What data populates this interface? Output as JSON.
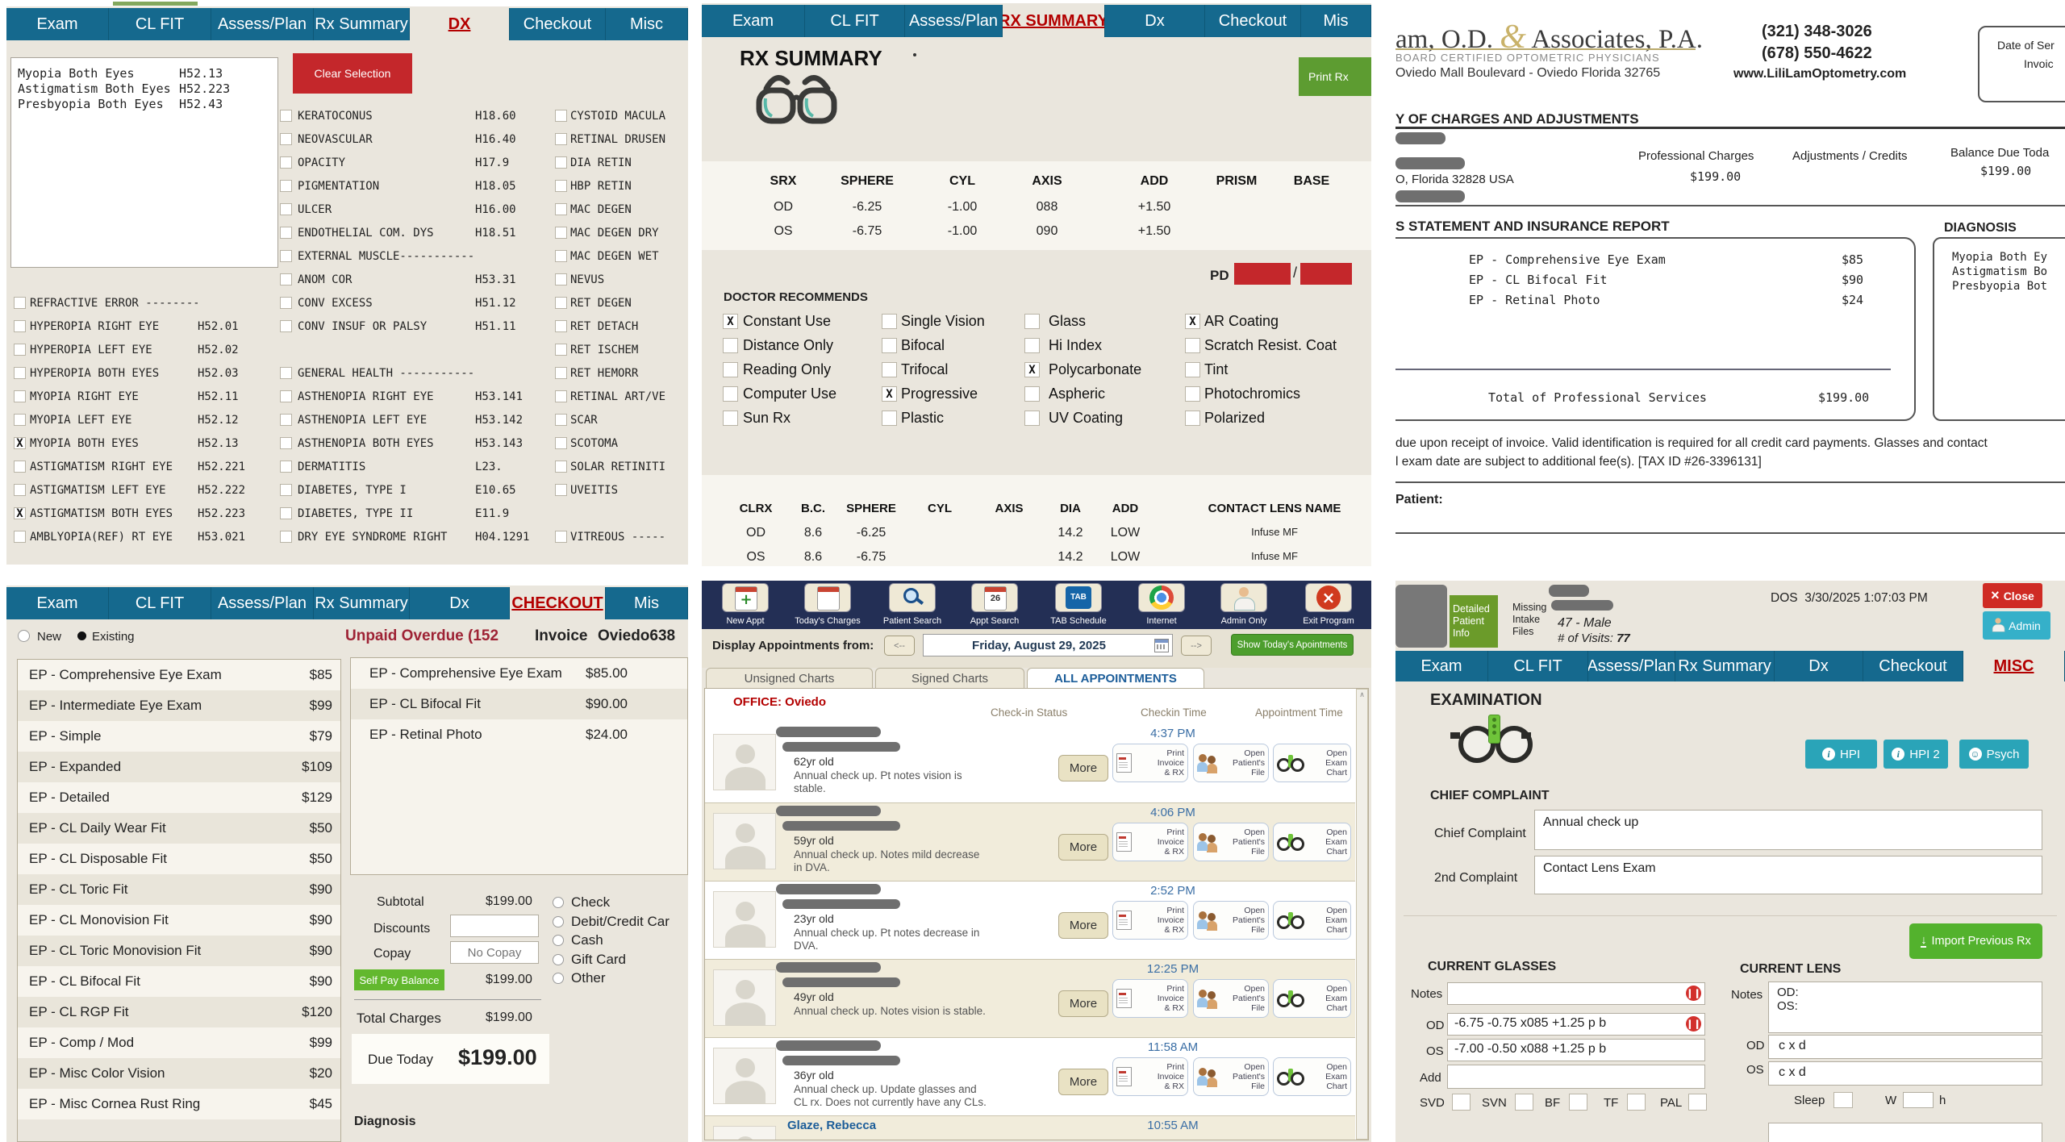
{
  "colors": {
    "tabbar": "#15698e",
    "tab_active_text": "#b30000",
    "clear_red": "#c4272b",
    "print_green": "#5d9c31",
    "selfpay_green": "#62b82e",
    "show_green": "#4d9e2d",
    "import_green": "#53b22d",
    "close_red": "#cf2b24",
    "admin_teal": "#35b0c9",
    "hpi_teal": "#2aa4b8",
    "toolbar_navy": "#232f55",
    "unpaid_red": "#9e2335",
    "office_red": "#b30000",
    "time_blue": "#3a6ea5",
    "panel_bg": "#eae6dd"
  },
  "dx": {
    "tabs": [
      {
        "label": "Exam"
      },
      {
        "label": "CL FIT"
      },
      {
        "label": "Assess/Plan"
      },
      {
        "label": "Rx Summary"
      },
      {
        "label": "DX",
        "active": true
      },
      {
        "label": "Checkout"
      },
      {
        "label": "Misc"
      }
    ],
    "selected": [
      {
        "name": "Myopia Both Eyes",
        "code": "H52.13"
      },
      {
        "name": "Astigmatism Both Eyes",
        "code": "H52.223"
      },
      {
        "name": "Presbyopia Both Eyes",
        "code": "H52.43"
      }
    ],
    "clear_button": "Clear Selection",
    "rows": [
      [
        null,
        {
          "label": "KERATOCONUS",
          "code": "H18.60"
        },
        {
          "label": "CYSTOID MACULA",
          "code": ""
        }
      ],
      [
        null,
        {
          "label": "NEOVASCULAR",
          "code": "H16.40"
        },
        {
          "label": "RETINAL DRUSEN",
          "code": ""
        }
      ],
      [
        null,
        {
          "label": "OPACITY",
          "code": "H17.9"
        },
        {
          "label": "DIA RETIN",
          "code": ""
        }
      ],
      [
        null,
        {
          "label": "PIGMENTATION",
          "code": "H18.05"
        },
        {
          "label": "HBP RETIN",
          "code": ""
        }
      ],
      [
        null,
        {
          "label": "ULCER",
          "code": "H16.00"
        },
        {
          "label": "MAC DEGEN",
          "code": ""
        }
      ],
      [
        null,
        {
          "label": "ENDOTHELIAL COM. DYS",
          "code": "H18.51"
        },
        {
          "label": "MAC DEGEN DRY",
          "code": ""
        }
      ],
      [
        null,
        {
          "label": "EXTERNAL MUSCLE----------------",
          "code": ""
        },
        {
          "label": "MAC DEGEN WET",
          "code": ""
        }
      ],
      [
        null,
        {
          "label": "ANOM COR",
          "code": "H53.31"
        },
        {
          "label": "NEVUS",
          "code": ""
        }
      ],
      [
        {
          "label": "REFRACTIVE ERROR ---------------",
          "code": ""
        },
        {
          "label": "CONV EXCESS",
          "code": "H51.12"
        },
        {
          "label": "RET DEGEN",
          "code": ""
        }
      ],
      [
        {
          "label": "HYPEROPIA RIGHT EYE",
          "code": "H52.01"
        },
        {
          "label": "CONV INSUF OR PALSY",
          "code": "H51.11"
        },
        {
          "label": "RET DETACH",
          "code": ""
        }
      ],
      [
        {
          "label": "HYPEROPIA LEFT EYE",
          "code": "H52.02"
        },
        null,
        {
          "label": "RET ISCHEM",
          "code": ""
        }
      ],
      [
        {
          "label": "HYPEROPIA BOTH EYES",
          "code": "H52.03"
        },
        {
          "label": "GENERAL HEALTH ----------------",
          "code": ""
        },
        {
          "label": "RET HEMORR",
          "code": ""
        }
      ],
      [
        {
          "label": "MYOPIA RIGHT EYE",
          "code": "H52.11"
        },
        {
          "label": "ASTHENOPIA RIGHT EYE",
          "code": "H53.141"
        },
        {
          "label": "RETINAL ART/VE",
          "code": ""
        }
      ],
      [
        {
          "label": "MYOPIA LEFT EYE",
          "code": "H52.12"
        },
        {
          "label": "ASTHENOPIA LEFT EYE",
          "code": "H53.142"
        },
        {
          "label": "SCAR",
          "code": ""
        }
      ],
      [
        {
          "label": "MYOPIA BOTH EYES",
          "code": "H52.13",
          "checked": true
        },
        {
          "label": "ASTHENOPIA BOTH EYES",
          "code": "H53.143"
        },
        {
          "label": "SCOTOMA",
          "code": ""
        }
      ],
      [
        {
          "label": "ASTIGMATISM RIGHT EYE",
          "code": "H52.221"
        },
        {
          "label": "DERMATITIS",
          "code": "L23."
        },
        {
          "label": "SOLAR RETINITI",
          "code": ""
        }
      ],
      [
        {
          "label": "ASTIGMATISM LEFT EYE",
          "code": "H52.222"
        },
        {
          "label": "DIABETES, TYPE I",
          "code": "E10.65"
        },
        {
          "label": "UVEITIS",
          "code": ""
        }
      ],
      [
        {
          "label": "ASTIGMATISM BOTH EYES",
          "code": "H52.223",
          "checked": true
        },
        {
          "label": "DIABETES, TYPE II",
          "code": "E11.9"
        },
        null
      ],
      [
        {
          "label": "AMBLYOPIA(REF) RT EYE",
          "code": "H53.021"
        },
        {
          "label": "DRY EYE SYNDROME RIGHT",
          "code": "H04.1291"
        },
        {
          "label": "VITREOUS -----",
          "code": ""
        }
      ]
    ]
  },
  "rx": {
    "tabs": [
      {
        "label": "Exam"
      },
      {
        "label": "CL FIT"
      },
      {
        "label": "Assess/Plan"
      },
      {
        "label": "RX SUMMARY",
        "active": true
      },
      {
        "label": "Dx"
      },
      {
        "label": "Checkout"
      },
      {
        "label": "Mis"
      }
    ],
    "title": "RX SUMMARY",
    "print_button": "Print Rx",
    "srx": {
      "headers": [
        "SRX",
        "SPHERE",
        "CYL",
        "AXIS",
        "ADD",
        "PRISM",
        "BASE"
      ],
      "rows": [
        [
          "OD",
          "-6.25",
          "-1.00",
          "088",
          "+1.50",
          "",
          ""
        ],
        [
          "OS",
          "-6.75",
          "-1.00",
          "090",
          "+1.50",
          "",
          ""
        ]
      ]
    },
    "pd_label": "PD",
    "pd_slash": "/",
    "recommends_title": "DOCTOR RECOMMENDS",
    "recommend_columns": [
      [
        {
          "label": "Constant Use",
          "checked": true
        },
        {
          "label": "Distance Only"
        },
        {
          "label": "Reading Only"
        },
        {
          "label": "Computer Use"
        },
        {
          "label": "Sun Rx"
        }
      ],
      [
        {
          "label": "Single Vision"
        },
        {
          "label": "Bifocal"
        },
        {
          "label": "Trifocal"
        },
        {
          "label": "Progressive",
          "checked": true
        },
        {
          "label": "Plastic"
        }
      ],
      [
        {
          "label": "Glass"
        },
        {
          "label": "Hi Index"
        },
        {
          "label": "Polycarbonate",
          "checked": true
        },
        {
          "label": "Aspheric"
        },
        {
          "label": "UV Coating"
        }
      ],
      [
        {
          "label": "AR Coating",
          "checked": true
        },
        {
          "label": "Scratch Resist. Coat"
        },
        {
          "label": "Tint"
        },
        {
          "label": "Photochromics"
        },
        {
          "label": "Polarized"
        }
      ]
    ],
    "cl": {
      "headers": [
        "CLRX",
        "B.C.",
        "SPHERE",
        "CYL",
        "AXIS",
        "DIA",
        "ADD",
        "CONTACT LENS NAME"
      ],
      "rows": [
        [
          "OD",
          "8.6",
          "-6.25",
          "",
          "",
          "14.2",
          "LOW",
          "Infuse MF"
        ],
        [
          "OS",
          "8.6",
          "-6.75",
          "",
          "",
          "14.2",
          "LOW",
          "Infuse MF"
        ]
      ]
    }
  },
  "invoice": {
    "name_prefix": "am, O.D.",
    "ampersand": "&",
    "name_suffix": "Associates, P.A.",
    "subtitle": "BOARD CERTIFIED OPTOMETRIC PHYSICIANS",
    "address": "Oviedo Mall Boulevard - Oviedo Florida 32765",
    "phone1": "(321) 348-3026",
    "phone2": "(678) 550-4622",
    "website": "www.LiliLamOptometry.com",
    "date_box_line1": "Date of Ser",
    "date_box_line2": "Invoic",
    "charges_header": "Y OF CHARGES AND ADJUSTMENTS",
    "col_professional": "Professional Charges",
    "col_adjustments": "Adjustments / Credits",
    "col_balance": "Balance Due Toda",
    "professional_amount": "$199.00",
    "balance_amount": "$199.00",
    "city_line": "O, Florida 32828 USA",
    "statement_header": "S STATEMENT AND INSURANCE REPORT",
    "items": [
      {
        "desc": "EP - Comprehensive Eye Exam",
        "amount": "$85"
      },
      {
        "desc": "EP - CL Bifocal Fit",
        "amount": "$90"
      },
      {
        "desc": "EP - Retinal Photo",
        "amount": "$24"
      }
    ],
    "total_label": "Total of Professional Services",
    "total_amount": "$199.00",
    "diagnosis_header": "DIAGNOSIS",
    "diagnosis_lines": [
      "Myopia Both Ey",
      "Astigmatism Bo",
      "Presbyopia Bot"
    ],
    "terms_line1": "due upon receipt of invoice.  Valid identification is required for all credit card payments.  Glasses and contact",
    "terms_line2": "l exam date are subject to additional fee(s).  [TAX ID #26-3396131]",
    "patient_label": "Patient:"
  },
  "checkout": {
    "tabs": [
      {
        "label": "Exam"
      },
      {
        "label": "CL FIT"
      },
      {
        "label": "Assess/Plan"
      },
      {
        "label": "Rx Summary"
      },
      {
        "label": "Dx"
      },
      {
        "label": "CHECKOUT",
        "active": true
      },
      {
        "label": "Mis"
      }
    ],
    "radio_new": "New",
    "radio_existing": "Existing",
    "unpaid_overdue": "Unpaid Overdue (152",
    "invoice_label": "Invoice",
    "invoice_number": "Oviedo638",
    "services": [
      {
        "name": "EP - Comprehensive Eye Exam",
        "price": "$85"
      },
      {
        "name": "EP - Intermediate Eye Exam",
        "price": "$99"
      },
      {
        "name": "EP - Simple",
        "price": "$79"
      },
      {
        "name": "EP - Expanded",
        "price": "$109"
      },
      {
        "name": "EP - Detailed",
        "price": "$129"
      },
      {
        "name": "EP - CL Daily Wear Fit",
        "price": "$50"
      },
      {
        "name": "EP - CL Disposable Fit",
        "price": "$50"
      },
      {
        "name": "EP - CL Toric Fit",
        "price": "$90"
      },
      {
        "name": "EP - CL Monovision Fit",
        "price": "$90"
      },
      {
        "name": "EP - CL Toric Monovision Fit",
        "price": "$90"
      },
      {
        "name": "EP - CL Bifocal Fit",
        "price": "$90"
      },
      {
        "name": "EP - CL RGP Fit",
        "price": "$120"
      },
      {
        "name": "EP - Comp / Mod",
        "price": "$99"
      },
      {
        "name": "EP - Misc Color Vision",
        "price": "$20"
      },
      {
        "name": "EP - Misc Cornea Rust Ring",
        "price": "$45"
      }
    ],
    "invoice_items": [
      {
        "desc": "EP - Comprehensive Eye Exam",
        "amount": "$85.00"
      },
      {
        "desc": "EP - CL Bifocal Fit",
        "amount": "$90.00"
      },
      {
        "desc": "EP - Retinal Photo",
        "amount": "$24.00"
      }
    ],
    "subtotal_label": "Subtotal",
    "subtotal": "$199.00",
    "discounts_label": "Discounts",
    "copay_label": "Copay",
    "copay_placeholder": "No Copay",
    "selfpay_label": "Self Pay Balance",
    "selfpay_amount": "$199.00",
    "total_charges_label": "Total Charges",
    "total_charges": "$199.00",
    "due_today_label": "Due Today",
    "due_today": "$199.00",
    "diagnosis_label": "Diagnosis",
    "payment_methods": [
      "Check",
      "Debit/Credit Car",
      "Cash",
      "Gift Card",
      "Other"
    ]
  },
  "appointments": {
    "toolbar": [
      {
        "label": "New Appt",
        "icon": "new-appt-icon"
      },
      {
        "label": "Today's Charges",
        "icon": "todays-charges-icon"
      },
      {
        "label": "Patient Search",
        "icon": "patient-search-icon"
      },
      {
        "label": "Appt Search",
        "icon": "appt-search-icon"
      },
      {
        "label": "TAB Schedule",
        "icon": "tab-schedule-icon"
      },
      {
        "label": "Internet",
        "icon": "internet-icon"
      },
      {
        "label": "Admin Only",
        "icon": "admin-only-icon"
      },
      {
        "label": "Exit Program",
        "icon": "exit-program-icon"
      }
    ],
    "display_label": "Display Appointments from:",
    "prev_arrow": "<--",
    "next_arrow": "-->",
    "date_value": "Friday, August 29, 2025",
    "show_today_button": "Show Today's Apointments",
    "tabs": [
      {
        "label": "Unsigned Charts"
      },
      {
        "label": "Signed Charts"
      },
      {
        "label": "ALL APPOINTMENTS",
        "active": true
      }
    ],
    "office_label": "OFFICE: Oviedo",
    "columns": [
      "Check-in Status",
      "Checkin Time",
      "Appointment Time"
    ],
    "row_buttons": {
      "more": "More",
      "print": "Print\nInvoice\n& RX",
      "open_file": "Open\nPatient's\nFile",
      "open_chart": "Open\nExam\nChart"
    },
    "rows": [
      {
        "redacted": true,
        "age": "62yr old",
        "note": "Annual check up. Pt notes vision is stable.",
        "time": "4:37 PM"
      },
      {
        "redacted": true,
        "age": "59yr old",
        "note": "Annual check up. Notes mild decrease in DVA.",
        "time": "4:06 PM"
      },
      {
        "redacted": true,
        "age": "23yr old",
        "note": "Annual check up. Pt notes decrease in DVA.",
        "time": "2:52 PM"
      },
      {
        "redacted": true,
        "age": "49yr old",
        "note": "Annual check up. Notes vision is stable.",
        "time": "12:25 PM"
      },
      {
        "redacted": true,
        "age": "36yr old",
        "note": "Annual check up. Update glasses and CL rx. Does not currently have any CLs.",
        "time": "11:58 AM"
      },
      {
        "redacted": false,
        "name": "Glaze, Rebecca",
        "time": "10:55 AM",
        "partial": true
      }
    ]
  },
  "misc": {
    "tabs": [
      {
        "label": "Exam"
      },
      {
        "label": "CL FIT"
      },
      {
        "label": "Assess/Plan"
      },
      {
        "label": "Rx Summary"
      },
      {
        "label": "Dx"
      },
      {
        "label": "Checkout"
      },
      {
        "label": "MISC",
        "active": true
      }
    ],
    "detailed_button": "Detailed Patient Info",
    "missing_intake": "Missing Intake Files",
    "age_gender": "47 - Male",
    "visits_label": "# of Visits:",
    "visits_value": "77",
    "dos_label": "DOS",
    "dos_value": "3/30/2025 1:07:03 PM",
    "close_icon": "×",
    "close_button": "Close",
    "admin_button": "Admin",
    "section_title": "EXAMINATION",
    "hpi_buttons": [
      "HPI",
      "HPI 2",
      "Psych"
    ],
    "chief_header": "CHIEF COMPLAINT",
    "chief_label": "Chief Complaint",
    "chief_value": "Annual check up",
    "second_label": "2nd Complaint",
    "second_value": "Contact Lens Exam",
    "import_button": "Import Previous Rx",
    "glasses": {
      "header": "CURRENT GLASSES",
      "notes_label": "Notes",
      "od_label": "OD",
      "od_value": "-6.75 -0.75 x085 +1.25 p b",
      "os_label": "OS",
      "os_value": "-7.00 -0.50 x088 +1.25 p b",
      "add_label": "Add",
      "checkboxes": [
        "SVD",
        "SVN",
        "BF",
        "TF",
        "PAL"
      ]
    },
    "lens": {
      "header": "CURRENT LENS",
      "notes_label": "Notes",
      "notes_line1": "OD:",
      "notes_line2": "OS:",
      "od_label": "OD",
      "od_value": "c x d",
      "os_label": "OS",
      "os_value": "c x d",
      "sleep_label": "Sleep",
      "w_label": "W",
      "h_label": "h"
    }
  }
}
